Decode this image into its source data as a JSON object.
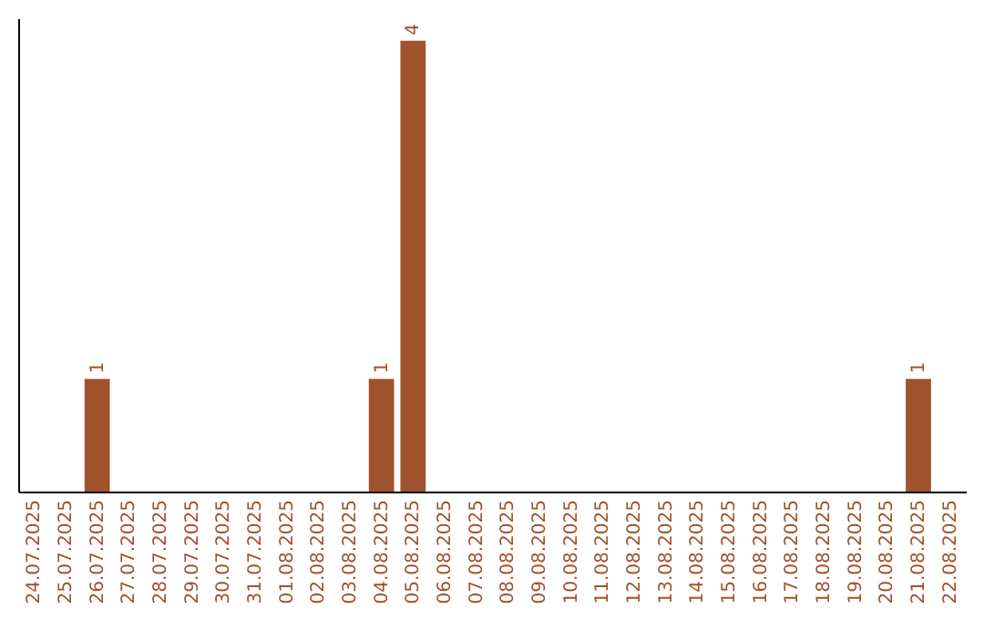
{
  "chart_data": {
    "type": "bar",
    "categories": [
      "24.07.2025",
      "25.07.2025",
      "26.07.2025",
      "27.07.2025",
      "28.07.2025",
      "29.07.2025",
      "30.07.2025",
      "31.07.2025",
      "01.08.2025",
      "02.08.2025",
      "03.08.2025",
      "04.08.2025",
      "05.08.2025",
      "06.08.2025",
      "07.08.2025",
      "08.08.2025",
      "09.08.2025",
      "10.08.2025",
      "11.08.2025",
      "12.08.2025",
      "13.08.2025",
      "14.08.2025",
      "15.08.2025",
      "16.08.2025",
      "17.08.2025",
      "18.08.2025",
      "19.08.2025",
      "20.08.2025",
      "21.08.2025",
      "22.08.2025"
    ],
    "values": [
      0,
      0,
      1,
      0,
      0,
      0,
      0,
      0,
      0,
      0,
      0,
      1,
      4,
      0,
      0,
      0,
      0,
      0,
      0,
      0,
      0,
      0,
      0,
      0,
      0,
      0,
      0,
      0,
      1,
      0
    ],
    "value_labels": [
      null,
      null,
      "1",
      null,
      null,
      null,
      null,
      null,
      null,
      null,
      null,
      "1",
      "4",
      null,
      null,
      null,
      null,
      null,
      null,
      null,
      null,
      null,
      null,
      null,
      null,
      null,
      null,
      null,
      "1",
      null
    ],
    "color": "#a0522d",
    "ylim": [
      0,
      4.2
    ],
    "tick_labels": "x"
  }
}
